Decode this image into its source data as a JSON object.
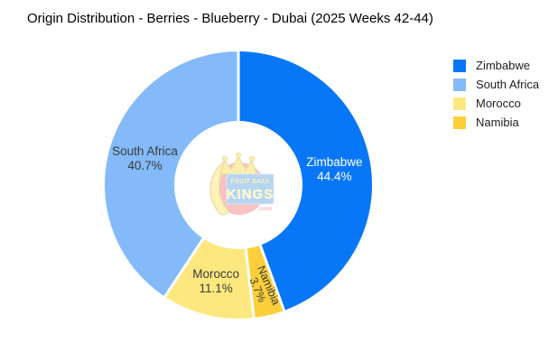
{
  "chart_data": {
    "type": "pie",
    "donut": true,
    "title": "Origin Distribution - Berries - Blueberry - Dubai (2025 Weeks 42-44)",
    "segments": [
      {
        "label": "Zimbabwe",
        "value": 44.4,
        "pct_label": "44.4%",
        "color": "#0877f7",
        "label_color": "#ffffff"
      },
      {
        "label": "South Africa",
        "value": 40.7,
        "pct_label": "40.7%",
        "color": "#84baf9",
        "label_color": "#3b3b3b"
      },
      {
        "label": "Morocco",
        "value": 11.1,
        "pct_label": "11.1%",
        "color": "#fde87f",
        "label_color": "#3b3b3b"
      },
      {
        "label": "Namibia",
        "value": 3.7,
        "pct_label": "3.7%",
        "color": "#fccf3a",
        "label_color": "#3b3b3b",
        "rotated_label_deg": 67
      }
    ],
    "legend_position": "right",
    "layout": {
      "clockwise_order_from_top": [
        "Zimbabwe",
        "Namibia",
        "Morocco",
        "South Africa"
      ],
      "center": [
        264,
        205
      ],
      "outer_radius": 148,
      "inner_radius": 71,
      "label_radius": 108,
      "rotated_label_radius": 117,
      "separator_color": "#ffffff"
    }
  },
  "watermark": {
    "top_text": "FRUIT DATA",
    "main_text": "KINGS",
    "suffix": ".com"
  }
}
